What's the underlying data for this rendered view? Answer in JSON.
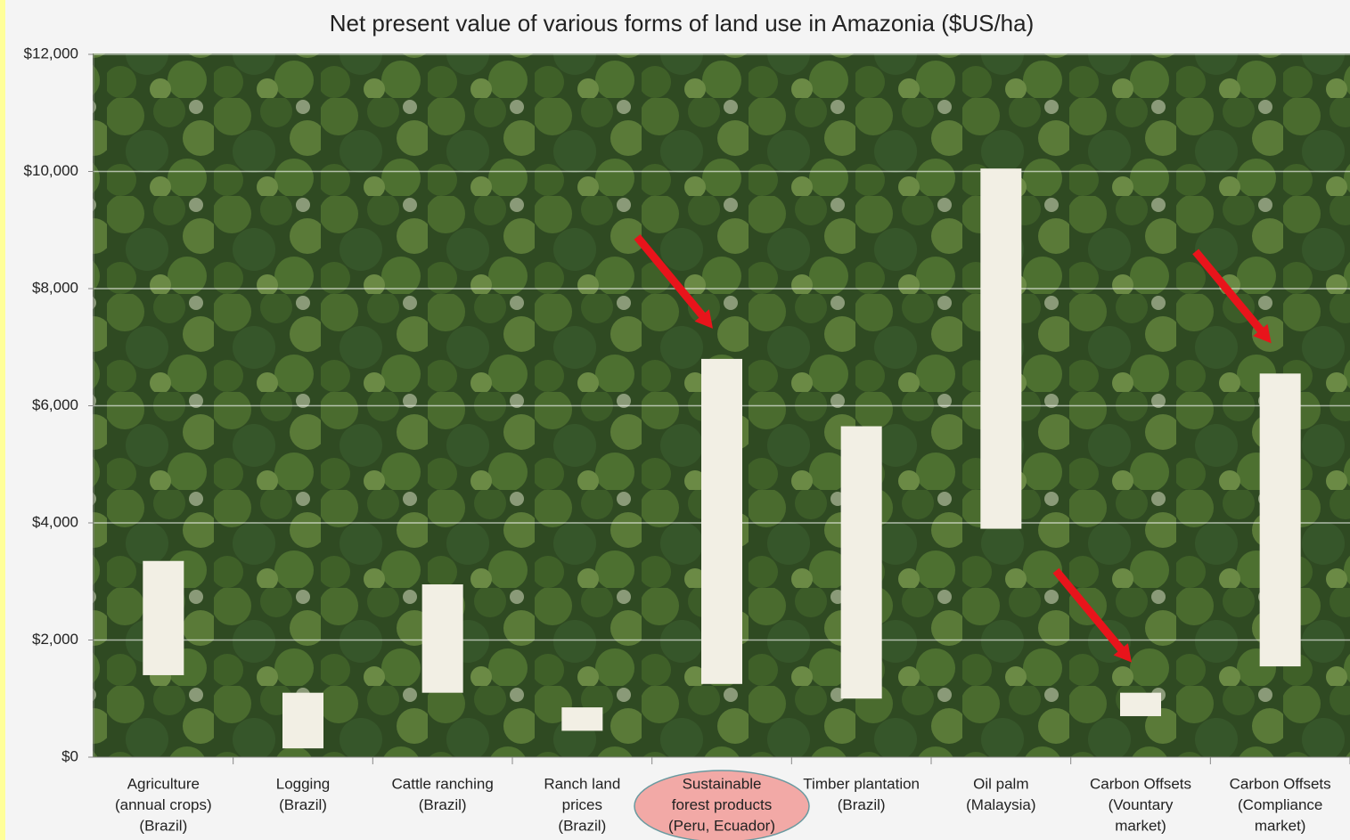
{
  "chart_data": {
    "type": "range-bar",
    "title": "Net present value of various forms of land use in Amazonia ($US/ha)",
    "categories": [
      [
        "Agriculture",
        "(annual crops)",
        "(Brazil)"
      ],
      [
        "Logging",
        "(Brazil)"
      ],
      [
        "Cattle ranching",
        "(Brazil)"
      ],
      [
        "Ranch land",
        "prices",
        "(Brazil)"
      ],
      [
        "Sustainable",
        "forest products",
        "(Peru, Ecuador)"
      ],
      [
        "Timber plantation",
        "(Brazil)"
      ],
      [
        "Oil palm",
        "(Malaysia)"
      ],
      [
        "Carbon Offsets",
        "(Vountary",
        "market)"
      ],
      [
        "Carbon Offsets",
        "(Compliance",
        "market)"
      ]
    ],
    "low": [
      1400,
      150,
      1100,
      450,
      1250,
      1000,
      3900,
      700,
      1550
    ],
    "high": [
      3350,
      1100,
      2950,
      850,
      6800,
      5650,
      10050,
      1100,
      6550
    ],
    "color": "#f2efe4",
    "ylim": [
      0,
      12000
    ],
    "yticks": [
      {
        "value": 0,
        "label": "$0"
      },
      {
        "value": 2000,
        "label": "$2,000"
      },
      {
        "value": 4000,
        "label": "$4,000"
      },
      {
        "value": 6000,
        "label": "$6,000"
      },
      {
        "value": 8000,
        "label": "$8,000"
      },
      {
        "value": 10000,
        "label": "$10,000"
      },
      {
        "value": 12000,
        "label": "$12,000"
      }
    ],
    "grid": true,
    "highlight_category": 4,
    "highlight_color": "#f2a9a6",
    "arrow_categories": [
      4,
      7,
      8
    ],
    "arrow_color": "#e8141b"
  }
}
